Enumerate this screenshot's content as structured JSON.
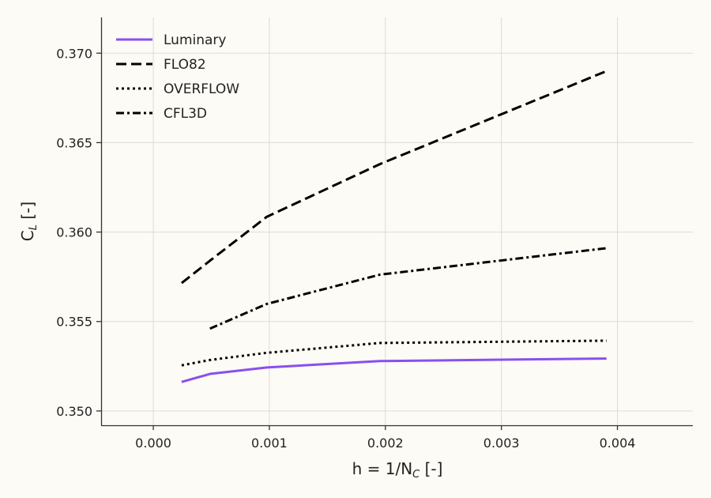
{
  "chart_data": {
    "type": "line",
    "xlabel": "h = 1/N",
    "xlabel_sub": "C",
    "xlabel_unit": " [-]",
    "ylabel": "C",
    "ylabel_sub": "L",
    "ylabel_unit": " [-]",
    "xlim": [
      -0.00045,
      0.00465
    ],
    "ylim": [
      0.3492,
      0.372
    ],
    "xticks": [
      0.0,
      0.001,
      0.002,
      0.003,
      0.004
    ],
    "xtick_labels": [
      "0.000",
      "0.001",
      "0.002",
      "0.003",
      "0.004"
    ],
    "yticks": [
      0.35,
      0.355,
      0.36,
      0.365,
      0.37
    ],
    "ytick_labels": [
      "0.350",
      "0.355",
      "0.360",
      "0.365",
      "0.370"
    ],
    "grid": true,
    "legend_position": "top-left",
    "series": [
      {
        "name": "Luminary",
        "color": "#8a4ff0",
        "style": "solid",
        "x": [
          0.000244,
          0.000488,
          0.000977,
          0.001953,
          0.003906
        ],
        "y": [
          0.35162,
          0.35207,
          0.35243,
          0.35279,
          0.35293
        ]
      },
      {
        "name": "FLO82",
        "color": "#000000",
        "style": "dashed",
        "x": [
          0.000244,
          0.000488,
          0.000977,
          0.001953,
          0.003906
        ],
        "y": [
          0.35715,
          0.3584,
          0.36085,
          0.3638,
          0.369
        ]
      },
      {
        "name": "OVERFLOW",
        "color": "#000000",
        "style": "dotted",
        "x": [
          0.000244,
          0.000488,
          0.000977,
          0.001953,
          0.003906
        ],
        "y": [
          0.35255,
          0.35285,
          0.35325,
          0.3538,
          0.35393
        ]
      },
      {
        "name": "CFL3D",
        "color": "#000000",
        "style": "dashdot",
        "x": [
          0.000488,
          0.000977,
          0.001953,
          0.003906
        ],
        "y": [
          0.3546,
          0.35598,
          0.35762,
          0.3591
        ]
      }
    ]
  }
}
